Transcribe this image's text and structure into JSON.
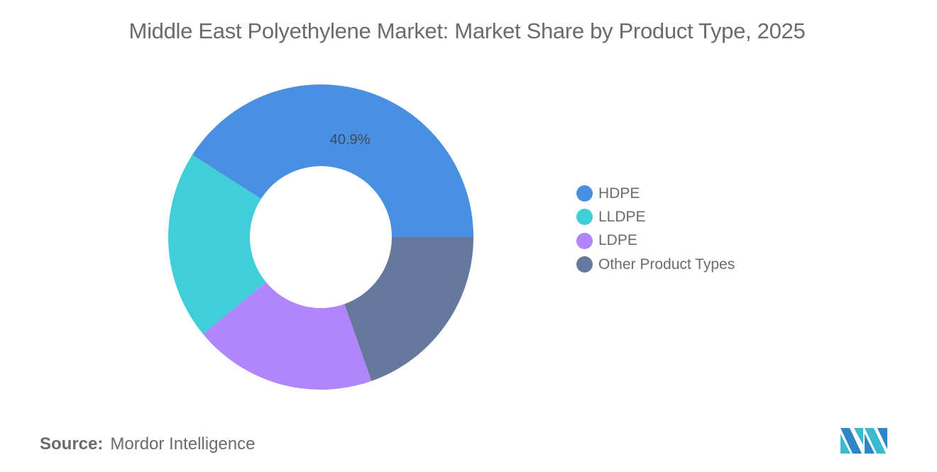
{
  "title": "Middle East Polyethylene Market: Market Share by Product Type, 2025",
  "source": {
    "label": "Source:",
    "value": "Mordor Intelligence"
  },
  "logo": "mordor-intelligence-logo",
  "legend": [
    {
      "label": "HDPE",
      "color": "#4a90e2"
    },
    {
      "label": "LLDPE",
      "color": "#40ced9"
    },
    {
      "label": "LDPE",
      "color": "#b185fb"
    },
    {
      "label": "Other Product Types",
      "color": "#66789b"
    }
  ],
  "chart_data": {
    "type": "pie",
    "variant": "donut",
    "title": "Middle East Polyethylene Market: Market Share by Product Type, 2025",
    "categories": [
      "HDPE",
      "LLDPE",
      "LDPE",
      "Other Product Types"
    ],
    "values": [
      40.9,
      20.0,
      19.4,
      19.6
    ],
    "unit": "%",
    "colors": [
      "#4a90e2",
      "#40ced9",
      "#b185fb",
      "#66789b"
    ],
    "data_labels": [
      {
        "category": "HDPE",
        "text": "40.9%"
      }
    ],
    "legend_position": "right",
    "source": "Mordor Intelligence"
  }
}
